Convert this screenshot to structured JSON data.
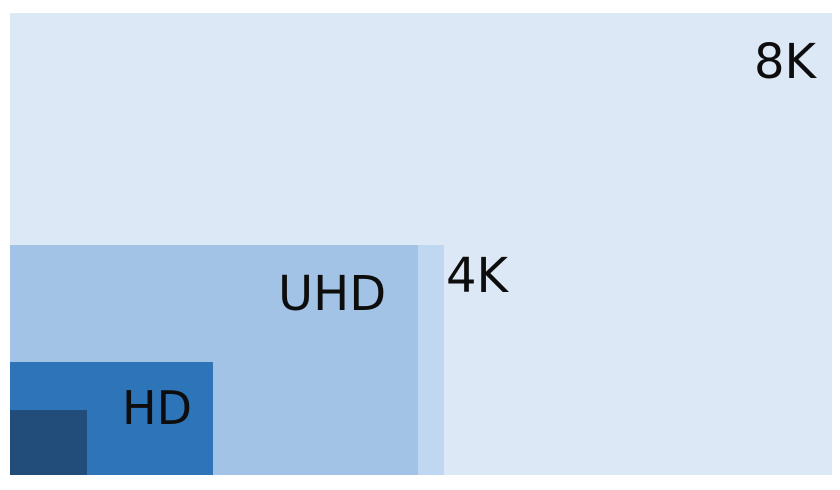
{
  "diagram": {
    "resolutions": [
      {
        "name": "8K",
        "color": "#dce8f6"
      },
      {
        "name": "4K",
        "color": "#bfd7f0"
      },
      {
        "name": "UHD",
        "color": "#a2c3e6"
      },
      {
        "name": "HD",
        "color": "#2e74b8"
      },
      {
        "name": "",
        "color": "#224c7a"
      }
    ]
  }
}
